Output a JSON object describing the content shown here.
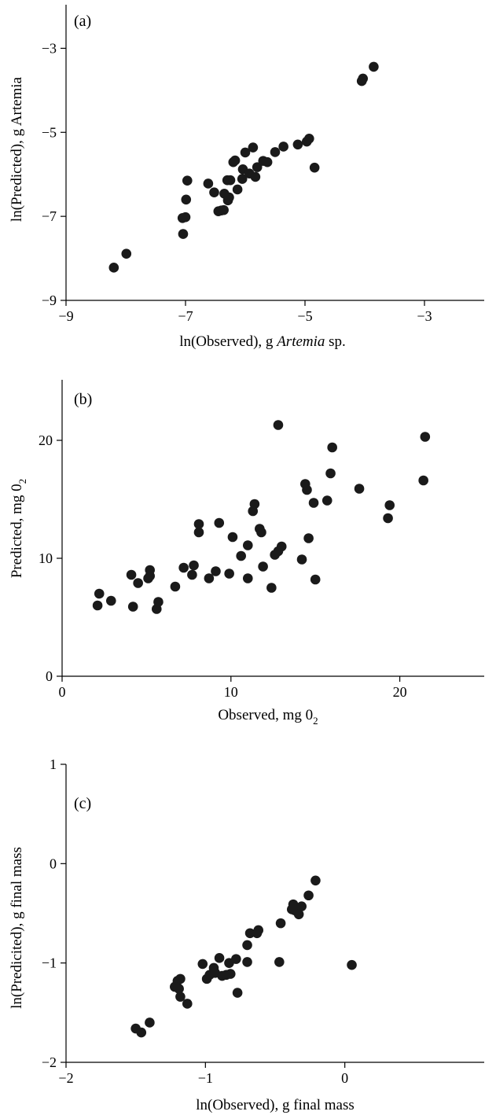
{
  "chart_data": [
    {
      "type": "scatter",
      "panel_label": "(a)",
      "xlabel": "ln(Observed), g Artemia sp.",
      "xlabel_parts": [
        "ln(Observed), g ",
        "Artemia",
        " sp."
      ],
      "ylabel": "ln(Predicted), g Artemia",
      "xlim": [
        -9,
        -2
      ],
      "ylim": [
        -9,
        -2
      ],
      "xticks": [
        -9,
        -7,
        -5,
        -3
      ],
      "yticks": [
        -9,
        -7,
        -5,
        -3
      ],
      "xtick_labels": [
        "−9",
        "−7",
        "−5",
        "−3"
      ],
      "ytick_labels": [
        "−9",
        "−7",
        "−5",
        "−3"
      ],
      "grid": false,
      "legend": "none",
      "series": [
        {
          "x": [
            -8.2,
            -7.99,
            -7.05,
            -7.04,
            -7.0,
            -6.99,
            -6.97,
            -6.62,
            -6.52,
            -6.45,
            -6.4,
            -6.36,
            -6.35,
            -6.3,
            -6.29,
            -6.27,
            -6.25,
            -6.2,
            -6.17,
            -6.13,
            -6.05,
            -6.04,
            -6.0,
            -5.93,
            -5.87,
            -5.83,
            -5.8,
            -5.7,
            -5.63,
            -5.5,
            -5.36,
            -5.12,
            -4.97,
            -4.93,
            -4.84,
            -4.05,
            -4.03,
            -3.85
          ],
          "y": [
            -8.22,
            -7.89,
            -7.04,
            -7.42,
            -7.02,
            -6.6,
            -6.15,
            -6.22,
            -6.43,
            -6.88,
            -6.86,
            -6.85,
            -6.46,
            -6.14,
            -6.62,
            -6.55,
            -6.14,
            -5.71,
            -5.67,
            -6.36,
            -6.11,
            -5.88,
            -5.48,
            -5.98,
            -5.36,
            -6.06,
            -5.83,
            -5.68,
            -5.71,
            -5.47,
            -5.34,
            -5.29,
            -5.22,
            -5.15,
            -5.84,
            -3.78,
            -3.72,
            -3.44
          ]
        }
      ]
    },
    {
      "type": "scatter",
      "panel_label": "(b)",
      "xlabel": "Observed, mg 0",
      "xlabel_sub": "2",
      "ylabel": "Predicted, mg 0",
      "ylabel_sub": "2",
      "xlim": [
        0,
        25
      ],
      "ylim": [
        0,
        25
      ],
      "xticks": [
        0,
        10,
        20
      ],
      "yticks": [
        0,
        10,
        20
      ],
      "xtick_labels": [
        "0",
        "10",
        "20"
      ],
      "ytick_labels": [
        "0",
        "10",
        "20"
      ],
      "grid": false,
      "legend": "none",
      "series": [
        {
          "x": [
            2.1,
            2.2,
            2.9,
            4.1,
            4.2,
            4.5,
            5.1,
            5.2,
            5.2,
            5.6,
            5.7,
            6.7,
            7.2,
            7.7,
            7.8,
            8.1,
            8.1,
            8.7,
            9.1,
            9.3,
            9.9,
            10.1,
            10.6,
            11.0,
            11.0,
            11.3,
            11.4,
            11.7,
            11.8,
            11.9,
            12.4,
            12.6,
            12.8,
            12.8,
            13.0,
            14.2,
            14.4,
            14.5,
            14.6,
            14.9,
            15.0,
            15.7,
            15.9,
            16.0,
            17.6,
            19.3,
            19.4,
            21.4,
            21.5
          ],
          "y": [
            6.0,
            7.0,
            6.4,
            8.6,
            5.9,
            7.9,
            8.3,
            8.5,
            9.0,
            5.7,
            6.3,
            7.6,
            9.2,
            8.6,
            9.4,
            12.2,
            12.9,
            8.3,
            8.9,
            13.0,
            8.7,
            11.8,
            10.2,
            8.3,
            11.1,
            14.0,
            14.6,
            12.5,
            12.2,
            9.3,
            7.5,
            10.3,
            10.6,
            21.3,
            11.0,
            9.9,
            16.3,
            15.8,
            11.7,
            14.7,
            8.2,
            14.9,
            17.2,
            19.4,
            15.9,
            13.4,
            14.5,
            16.6,
            20.3
          ]
        }
      ]
    },
    {
      "type": "scatter",
      "panel_label": "(c)",
      "xlabel": "ln(Observed), g final mass",
      "ylabel": "ln(Predicited), g final mass",
      "xlim": [
        -2,
        1
      ],
      "ylim": [
        -2,
        1
      ],
      "xticks": [
        -2,
        -1,
        0
      ],
      "yticks": [
        -2,
        -1,
        0,
        1
      ],
      "xtick_labels": [
        "−2",
        "−1",
        "0"
      ],
      "ytick_labels": [
        "−2",
        "−1",
        "0",
        "1"
      ],
      "grid": false,
      "legend": "none",
      "series": [
        {
          "x": [
            -1.5,
            -1.46,
            -1.4,
            -1.22,
            -1.2,
            -1.19,
            -1.18,
            -1.18,
            -1.13,
            -1.02,
            -0.99,
            -0.97,
            -0.94,
            -0.93,
            -0.9,
            -0.88,
            -0.85,
            -0.83,
            -0.82,
            -0.78,
            -0.77,
            -0.7,
            -0.7,
            -0.68,
            -0.63,
            -0.62,
            -0.47,
            -0.46,
            -0.38,
            -0.37,
            -0.36,
            -0.33,
            -0.31,
            -0.26,
            -0.21,
            0.05
          ],
          "y": [
            -1.66,
            -1.7,
            -1.6,
            -1.24,
            -1.18,
            -1.26,
            -1.34,
            -1.16,
            -1.41,
            -1.01,
            -1.16,
            -1.12,
            -1.05,
            -1.1,
            -0.95,
            -1.13,
            -1.12,
            -1.0,
            -1.11,
            -0.96,
            -1.3,
            -0.99,
            -0.82,
            -0.7,
            -0.7,
            -0.67,
            -0.99,
            -0.6,
            -0.46,
            -0.41,
            -0.47,
            -0.51,
            -0.43,
            -0.32,
            -0.17,
            -1.02
          ]
        }
      ]
    }
  ]
}
